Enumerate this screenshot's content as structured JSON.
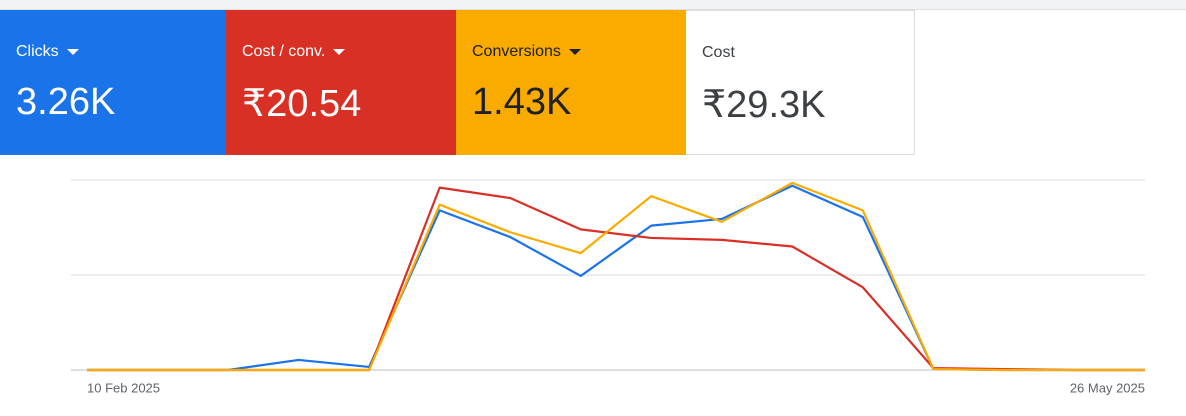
{
  "cards": [
    {
      "label": "Clicks",
      "value": "3.26K",
      "color": "#1a73e8"
    },
    {
      "label": "Cost / conv.",
      "value": "₹20.54",
      "color": "#d93025"
    },
    {
      "label": "Conversions",
      "value": "1.43K",
      "color": "#f9ab00"
    },
    {
      "label": "Cost",
      "value": "₹29.3K",
      "color": "#ffffff"
    }
  ],
  "chart_data": {
    "type": "line",
    "categories": [
      "10 Feb 2025",
      null,
      null,
      null,
      null,
      null,
      null,
      null,
      null,
      null,
      null,
      null,
      null,
      null,
      null,
      "26 May 2025"
    ],
    "series": [
      {
        "name": "Clicks",
        "color": "#1a73e8",
        "values": [
          0,
          0,
          0,
          5.3,
          1.6,
          84,
          70,
          49.5,
          76,
          79.5,
          97,
          80.5,
          0.5,
          0,
          0,
          0
        ]
      },
      {
        "name": "Cost / conv.",
        "color": "#d93025",
        "values": [
          0,
          0,
          0,
          0,
          0,
          96,
          90.5,
          74,
          69.5,
          68.5,
          65,
          43.5,
          1,
          0.5,
          0,
          0
        ]
      },
      {
        "name": "Conversions",
        "color": "#f9ab00",
        "values": [
          0,
          0,
          0,
          0,
          0,
          87,
          72.5,
          61.5,
          91.5,
          78,
          98.5,
          84,
          0.5,
          0,
          0,
          0
        ]
      }
    ],
    "ylim": [
      0,
      100
    ],
    "yticks": [
      0,
      50,
      100
    ],
    "grid": true
  }
}
